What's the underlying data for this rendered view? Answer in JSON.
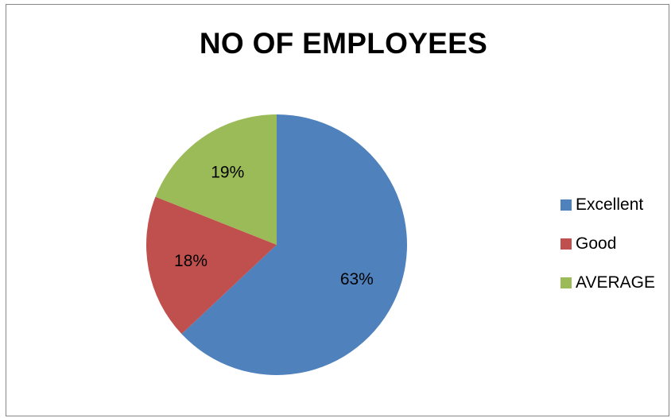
{
  "chart_data": {
    "type": "pie",
    "title": "NO OF EMPLOYEES",
    "categories": [
      "Excellent",
      "Good",
      "AVERAGE"
    ],
    "values": [
      63,
      18,
      19
    ],
    "data_labels": [
      "63%",
      "18%",
      "19%"
    ],
    "colors": [
      "#4F81BD",
      "#C0504D",
      "#9BBB59"
    ],
    "start_angle_deg": 0,
    "direction": "clockwise",
    "legend_position": "right"
  }
}
